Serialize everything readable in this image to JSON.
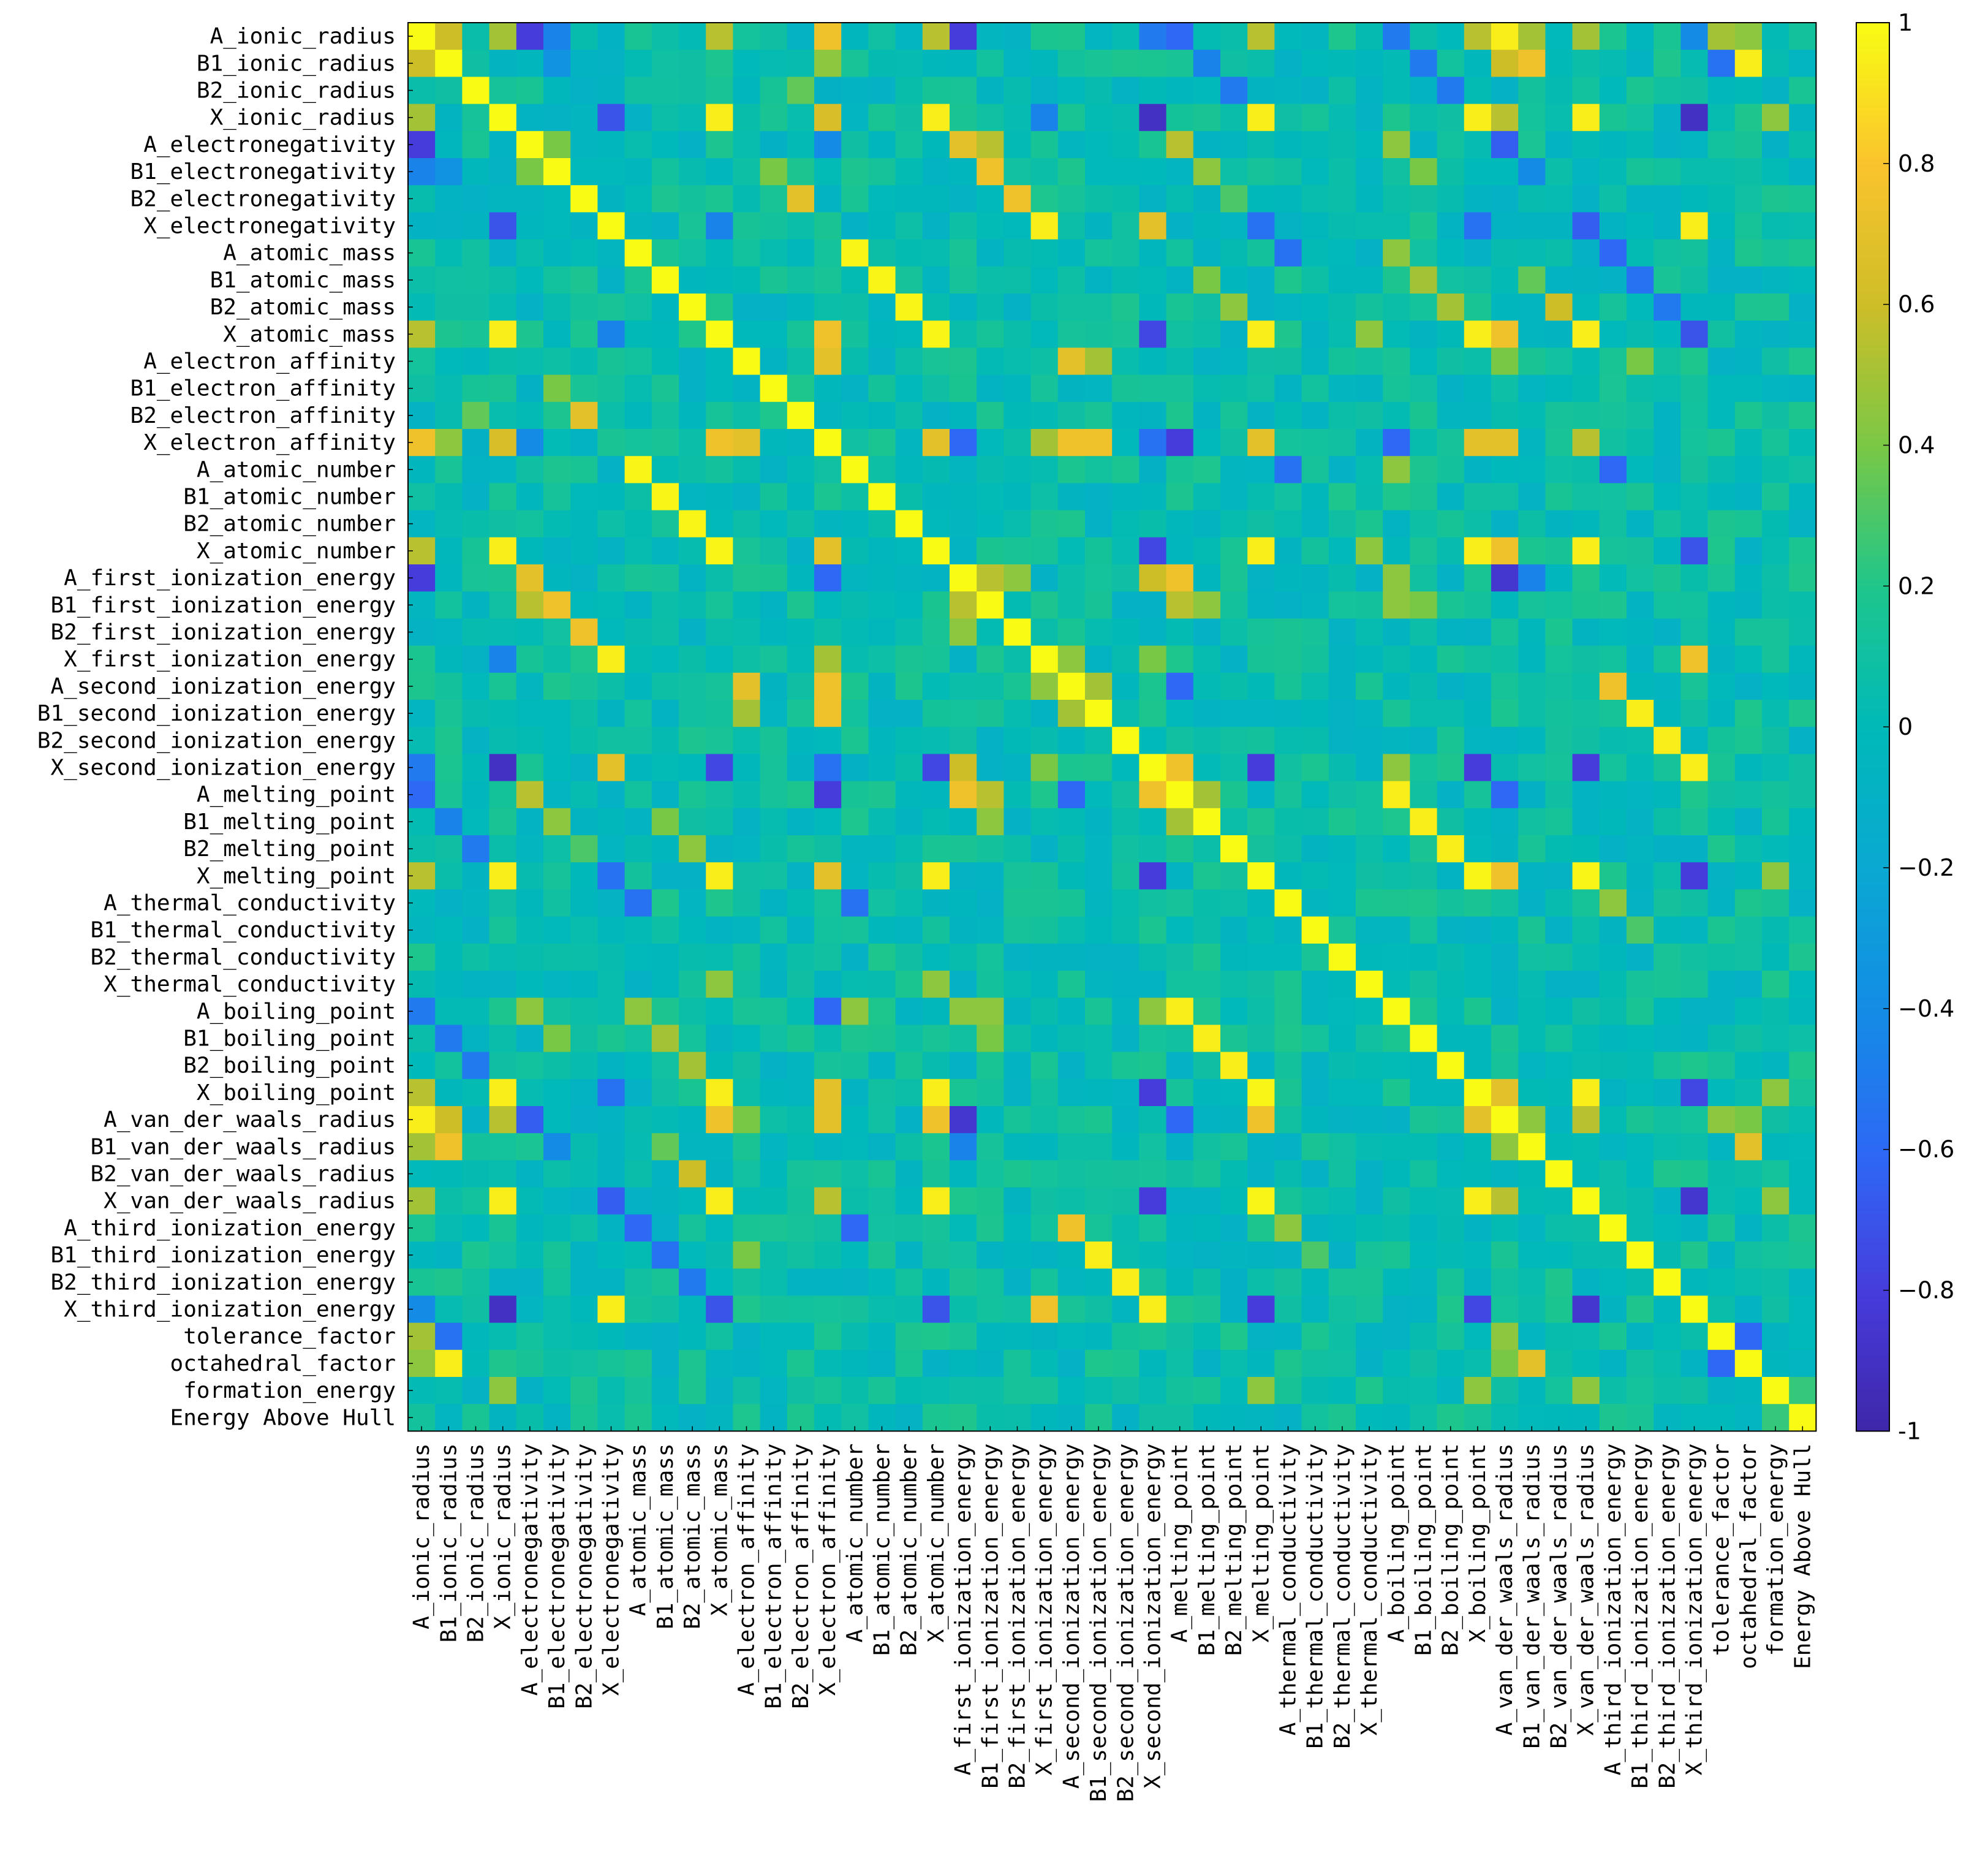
{
  "chart_data": {
    "type": "heatmap",
    "variables": [
      "A_ionic_radius",
      "B1_ionic_radius",
      "B2_ionic_radius",
      "X_ionic_radius",
      "A_electronegativity",
      "B1_electronegativity",
      "B2_electronegativity",
      "X_electronegativity",
      "A_atomic_mass",
      "B1_atomic_mass",
      "B2_atomic_mass",
      "X_atomic_mass",
      "A_electron_affinity",
      "B1_electron_affinity",
      "B2_electron_affinity",
      "X_electron_affinity",
      "A_atomic_number",
      "B1_atomic_number",
      "B2_atomic_number",
      "X_atomic_number",
      "A_first_ionization_energy",
      "B1_first_ionization_energy",
      "B2_first_ionization_energy",
      "X_first_ionization_energy",
      "A_second_ionization_energy",
      "B1_second_ionization_energy",
      "B2_second_ionization_energy",
      "X_second_ionization_energy",
      "A_melting_point",
      "B1_melting_point",
      "B2_melting_point",
      "X_melting_point",
      "A_thermal_conductivity",
      "B1_thermal_conductivity",
      "B2_thermal_conductivity",
      "X_thermal_conductivity",
      "A_boiling_point",
      "B1_boiling_point",
      "B2_boiling_point",
      "X_boiling_point",
      "A_van_der_waals_radius",
      "B1_van_der_waals_radius",
      "B2_van_der_waals_radius",
      "X_van_der_waals_radius",
      "A_third_ionization_energy",
      "B1_third_ionization_energy",
      "B2_third_ionization_energy",
      "X_third_ionization_energy",
      "tolerance_factor",
      "octahedral_factor",
      "formation_energy",
      "Energy Above Hull"
    ],
    "diagonal": 1,
    "pairs": [
      [
        "A_ionic_radius",
        "B1_ionic_radius",
        0.6
      ],
      [
        "A_ionic_radius",
        "X_ionic_radius",
        0.5
      ],
      [
        "A_ionic_radius",
        "A_electronegativity",
        -0.8
      ],
      [
        "A_ionic_radius",
        "B1_electronegativity",
        -0.45
      ],
      [
        "A_ionic_radius",
        "X_atomic_mass",
        0.55
      ],
      [
        "A_ionic_radius",
        "X_electron_affinity",
        0.75
      ],
      [
        "A_ionic_radius",
        "X_atomic_number",
        0.55
      ],
      [
        "A_ionic_radius",
        "A_first_ionization_energy",
        -0.8
      ],
      [
        "A_ionic_radius",
        "X_melting_point",
        0.55
      ],
      [
        "A_ionic_radius",
        "X_boiling_point",
        0.55
      ],
      [
        "A_ionic_radius",
        "A_van_der_waals_radius",
        0.95
      ],
      [
        "A_ionic_radius",
        "B1_van_der_waals_radius",
        0.5
      ],
      [
        "A_ionic_radius",
        "X_van_der_waals_radius",
        0.5
      ],
      [
        "A_ionic_radius",
        "tolerance_factor",
        0.5
      ],
      [
        "A_ionic_radius",
        "octahedral_factor",
        0.45
      ],
      [
        "A_ionic_radius",
        "A_melting_point",
        -0.6
      ],
      [
        "A_ionic_radius",
        "A_boiling_point",
        -0.5
      ],
      [
        "A_ionic_radius",
        "X_second_ionization_energy",
        -0.5
      ],
      [
        "A_ionic_radius",
        "X_third_ionization_energy",
        -0.4
      ],
      [
        "B1_ionic_radius",
        "B1_electronegativity",
        -0.35
      ],
      [
        "B1_ionic_radius",
        "X_electron_affinity",
        0.45
      ],
      [
        "B1_ionic_radius",
        "A_van_der_waals_radius",
        0.6
      ],
      [
        "B1_ionic_radius",
        "B1_van_der_waals_radius",
        0.75
      ],
      [
        "B1_ionic_radius",
        "octahedral_factor",
        0.95
      ],
      [
        "B1_ionic_radius",
        "tolerance_factor",
        -0.55
      ],
      [
        "B1_ionic_radius",
        "B1_melting_point",
        -0.45
      ],
      [
        "B1_ionic_radius",
        "B1_boiling_point",
        -0.5
      ],
      [
        "B2_ionic_radius",
        "B2_electron_affinity",
        0.35
      ],
      [
        "B2_ionic_radius",
        "B2_melting_point",
        -0.5
      ],
      [
        "B2_ionic_radius",
        "B2_boiling_point",
        -0.5
      ],
      [
        "X_ionic_radius",
        "X_atomic_mass",
        0.95
      ],
      [
        "X_ionic_radius",
        "X_atomic_number",
        0.95
      ],
      [
        "X_ionic_radius",
        "X_electronegativity",
        -0.7
      ],
      [
        "X_ionic_radius",
        "X_electron_affinity",
        0.65
      ],
      [
        "X_ionic_radius",
        "X_melting_point",
        0.95
      ],
      [
        "X_ionic_radius",
        "X_boiling_point",
        0.95
      ],
      [
        "X_ionic_radius",
        "X_van_der_waals_radius",
        0.95
      ],
      [
        "X_ionic_radius",
        "X_second_ionization_energy",
        -0.9
      ],
      [
        "X_ionic_radius",
        "X_third_ionization_energy",
        -0.9
      ],
      [
        "X_ionic_radius",
        "X_first_ionization_energy",
        -0.45
      ],
      [
        "X_ionic_radius",
        "formation_energy",
        0.45
      ],
      [
        "X_ionic_radius",
        "A_van_der_waals_radius",
        0.55
      ],
      [
        "A_electronegativity",
        "A_first_ionization_energy",
        0.7
      ],
      [
        "A_electronegativity",
        "A_melting_point",
        0.55
      ],
      [
        "A_electronegativity",
        "A_boiling_point",
        0.45
      ],
      [
        "A_electronegativity",
        "B1_electronegativity",
        0.4
      ],
      [
        "A_electronegativity",
        "B1_first_ionization_energy",
        0.55
      ],
      [
        "A_electronegativity",
        "A_van_der_waals_radius",
        -0.65
      ],
      [
        "A_electronegativity",
        "X_electron_affinity",
        -0.4
      ],
      [
        "B1_electronegativity",
        "B1_first_ionization_energy",
        0.75
      ],
      [
        "B1_electronegativity",
        "B1_melting_point",
        0.45
      ],
      [
        "B1_electronegativity",
        "B1_boiling_point",
        0.4
      ],
      [
        "B1_electronegativity",
        "B1_electron_affinity",
        0.4
      ],
      [
        "B1_electronegativity",
        "B1_van_der_waals_radius",
        -0.4
      ],
      [
        "B2_electronegativity",
        "B2_first_ionization_energy",
        0.75
      ],
      [
        "B2_electronegativity",
        "B2_electron_affinity",
        0.7
      ],
      [
        "B2_electronegativity",
        "B2_melting_point",
        0.3
      ],
      [
        "X_electronegativity",
        "X_first_ionization_energy",
        0.95
      ],
      [
        "X_electronegativity",
        "X_third_ionization_energy",
        0.95
      ],
      [
        "X_electronegativity",
        "X_second_ionization_energy",
        0.7
      ],
      [
        "X_electronegativity",
        "X_van_der_waals_radius",
        -0.65
      ],
      [
        "X_electronegativity",
        "X_melting_point",
        -0.55
      ],
      [
        "X_electronegativity",
        "X_boiling_point",
        -0.55
      ],
      [
        "X_electronegativity",
        "X_atomic_mass",
        -0.45
      ],
      [
        "A_atomic_mass",
        "A_atomic_number",
        0.98
      ],
      [
        "A_atomic_mass",
        "A_boiling_point",
        0.45
      ],
      [
        "A_atomic_mass",
        "A_third_ionization_energy",
        -0.6
      ],
      [
        "A_atomic_mass",
        "A_thermal_conductivity",
        -0.55
      ],
      [
        "B1_atomic_mass",
        "B1_atomic_number",
        0.98
      ],
      [
        "B1_atomic_mass",
        "B1_boiling_point",
        0.5
      ],
      [
        "B1_atomic_mass",
        "B1_melting_point",
        0.4
      ],
      [
        "B1_atomic_mass",
        "B1_van_der_waals_radius",
        0.35
      ],
      [
        "B1_atomic_mass",
        "B1_third_ionization_energy",
        -0.55
      ],
      [
        "B2_atomic_mass",
        "B2_atomic_number",
        0.98
      ],
      [
        "B2_atomic_mass",
        "B2_boiling_point",
        0.5
      ],
      [
        "B2_atomic_mass",
        "B2_melting_point",
        0.45
      ],
      [
        "B2_atomic_mass",
        "B2_van_der_waals_radius",
        0.6
      ],
      [
        "B2_atomic_mass",
        "B2_third_ionization_energy",
        -0.5
      ],
      [
        "X_atomic_mass",
        "X_atomic_number",
        0.98
      ],
      [
        "X_atomic_mass",
        "X_electron_affinity",
        0.75
      ],
      [
        "X_atomic_mass",
        "X_melting_point",
        0.95
      ],
      [
        "X_atomic_mass",
        "X_boiling_point",
        0.95
      ],
      [
        "X_atomic_mass",
        "X_van_der_waals_radius",
        0.95
      ],
      [
        "X_atomic_mass",
        "X_second_ionization_energy",
        -0.75
      ],
      [
        "X_atomic_mass",
        "X_third_ionization_energy",
        -0.7
      ],
      [
        "X_atomic_mass",
        "X_thermal_conductivity",
        0.45
      ],
      [
        "X_atomic_mass",
        "A_van_der_waals_radius",
        0.75
      ],
      [
        "A_electron_affinity",
        "X_electron_affinity",
        0.7
      ],
      [
        "A_electron_affinity",
        "A_second_ionization_energy",
        0.7
      ],
      [
        "A_electron_affinity",
        "B1_second_ionization_energy",
        0.5
      ],
      [
        "A_electron_affinity",
        "A_van_der_waals_radius",
        0.4
      ],
      [
        "A_electron_affinity",
        "B1_third_ionization_energy",
        0.4
      ],
      [
        "X_electron_affinity",
        "X_atomic_number",
        0.7
      ],
      [
        "X_electron_affinity",
        "A_second_ionization_energy",
        0.75
      ],
      [
        "X_electron_affinity",
        "B1_second_ionization_energy",
        0.75
      ],
      [
        "X_electron_affinity",
        "X_melting_point",
        0.7
      ],
      [
        "X_electron_affinity",
        "X_boiling_point",
        0.7
      ],
      [
        "X_electron_affinity",
        "A_van_der_waals_radius",
        0.7
      ],
      [
        "X_electron_affinity",
        "A_first_ionization_energy",
        -0.6
      ],
      [
        "X_electron_affinity",
        "A_melting_point",
        -0.8
      ],
      [
        "X_electron_affinity",
        "A_boiling_point",
        -0.6
      ],
      [
        "X_electron_affinity",
        "X_first_ionization_energy",
        0.5
      ],
      [
        "X_electron_affinity",
        "X_van_der_waals_radius",
        0.55
      ],
      [
        "X_electron_affinity",
        "X_second_ionization_energy",
        -0.55
      ],
      [
        "A_atomic_number",
        "A_boiling_point",
        0.45
      ],
      [
        "A_atomic_number",
        "A_third_ionization_energy",
        -0.6
      ],
      [
        "A_atomic_number",
        "A_thermal_conductivity",
        -0.55
      ],
      [
        "X_atomic_number",
        "X_melting_point",
        0.95
      ],
      [
        "X_atomic_number",
        "X_boiling_point",
        0.95
      ],
      [
        "X_atomic_number",
        "X_van_der_waals_radius",
        0.95
      ],
      [
        "X_atomic_number",
        "X_second_ionization_energy",
        -0.75
      ],
      [
        "X_atomic_number",
        "X_third_ionization_energy",
        -0.7
      ],
      [
        "X_atomic_number",
        "A_van_der_waals_radius",
        0.75
      ],
      [
        "X_atomic_number",
        "X_thermal_conductivity",
        0.45
      ],
      [
        "A_first_ionization_energy",
        "B1_first_ionization_energy",
        0.55
      ],
      [
        "A_first_ionization_energy",
        "B2_first_ionization_energy",
        0.45
      ],
      [
        "A_first_ionization_energy",
        "A_melting_point",
        0.75
      ],
      [
        "A_first_ionization_energy",
        "X_second_ionization_energy",
        0.6
      ],
      [
        "A_first_ionization_energy",
        "A_boiling_point",
        0.45
      ],
      [
        "A_first_ionization_energy",
        "A_van_der_waals_radius",
        -0.85
      ],
      [
        "A_first_ionization_energy",
        "B1_van_der_waals_radius",
        -0.45
      ],
      [
        "B1_first_ionization_energy",
        "B1_melting_point",
        0.45
      ],
      [
        "B1_first_ionization_energy",
        "B1_boiling_point",
        0.4
      ],
      [
        "B1_first_ionization_energy",
        "A_melting_point",
        0.55
      ],
      [
        "B1_first_ionization_energy",
        "A_boiling_point",
        0.45
      ],
      [
        "X_first_ionization_energy",
        "X_third_ionization_energy",
        0.75
      ],
      [
        "X_first_ionization_energy",
        "A_second_ionization_energy",
        0.45
      ],
      [
        "X_first_ionization_energy",
        "X_second_ionization_energy",
        0.4
      ],
      [
        "A_second_ionization_energy",
        "B1_second_ionization_energy",
        0.5
      ],
      [
        "A_second_ionization_energy",
        "A_third_ionization_energy",
        0.75
      ],
      [
        "A_second_ionization_energy",
        "A_melting_point",
        -0.6
      ],
      [
        "B1_second_ionization_energy",
        "B1_third_ionization_energy",
        0.95
      ],
      [
        "B2_second_ionization_energy",
        "B2_third_ionization_energy",
        0.95
      ],
      [
        "X_second_ionization_energy",
        "A_melting_point",
        0.75
      ],
      [
        "X_second_ionization_energy",
        "X_melting_point",
        -0.8
      ],
      [
        "X_second_ionization_energy",
        "X_boiling_point",
        -0.8
      ],
      [
        "X_second_ionization_energy",
        "X_van_der_waals_radius",
        -0.8
      ],
      [
        "X_second_ionization_energy",
        "X_third_ionization_energy",
        0.95
      ],
      [
        "X_second_ionization_energy",
        "A_boiling_point",
        0.45
      ],
      [
        "A_melting_point",
        "A_boiling_point",
        0.95
      ],
      [
        "A_melting_point",
        "B1_melting_point",
        0.5
      ],
      [
        "A_melting_point",
        "A_van_der_waals_radius",
        -0.6
      ],
      [
        "B1_melting_point",
        "B1_boiling_point",
        0.95
      ],
      [
        "B2_melting_point",
        "B2_boiling_point",
        0.95
      ],
      [
        "X_melting_point",
        "X_boiling_point",
        0.98
      ],
      [
        "X_melting_point",
        "X_van_der_waals_radius",
        0.98
      ],
      [
        "X_melting_point",
        "A_van_der_waals_radius",
        0.75
      ],
      [
        "X_melting_point",
        "X_third_ionization_energy",
        -0.8
      ],
      [
        "X_melting_point",
        "formation_energy",
        0.45
      ],
      [
        "A_thermal_conductivity",
        "A_third_ionization_energy",
        0.45
      ],
      [
        "B1_thermal_conductivity",
        "B1_third_ionization_energy",
        0.3
      ],
      [
        "X_boiling_point",
        "X_van_der_waals_radius",
        0.95
      ],
      [
        "X_boiling_point",
        "A_van_der_waals_radius",
        0.7
      ],
      [
        "X_boiling_point",
        "X_third_ionization_energy",
        -0.75
      ],
      [
        "X_boiling_point",
        "formation_energy",
        0.45
      ],
      [
        "A_van_der_waals_radius",
        "B1_van_der_waals_radius",
        0.45
      ],
      [
        "A_van_der_waals_radius",
        "X_van_der_waals_radius",
        0.55
      ],
      [
        "A_van_der_waals_radius",
        "tolerance_factor",
        0.45
      ],
      [
        "A_van_der_waals_radius",
        "octahedral_factor",
        0.4
      ],
      [
        "B1_van_der_waals_radius",
        "octahedral_factor",
        0.7
      ],
      [
        "X_van_der_waals_radius",
        "X_third_ionization_energy",
        -0.85
      ],
      [
        "X_van_der_waals_radius",
        "formation_energy",
        0.45
      ],
      [
        "tolerance_factor",
        "octahedral_factor",
        -0.6
      ],
      [
        "formation_energy",
        "Energy Above Hull",
        0.25
      ]
    ],
    "colorbar": {
      "min": -1,
      "max": 1,
      "ticks": [
        "-1",
        "−0.8",
        "−0.6",
        "−0.4",
        "−0.2",
        "0",
        "0.2",
        "0.4",
        "0.6",
        "0.8",
        "1"
      ]
    },
    "colormap": "parula",
    "background_value": 0.05
  }
}
